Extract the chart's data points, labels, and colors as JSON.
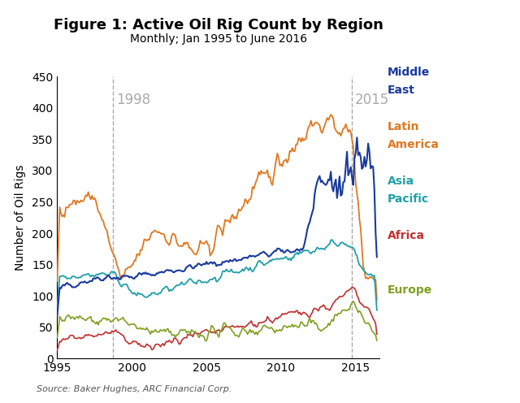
{
  "title": "Figure 1: Active Oil Rig Count by Region",
  "subtitle": "Monthly; Jan 1995 to June 2016",
  "ylabel": "Number of Oil Rigs",
  "source": "Source: Baker Hughes, ARC Financial Corp.",
  "xlim": [
    1995.0,
    2016.6
  ],
  "ylim": [
    0,
    450
  ],
  "yticks": [
    0,
    50,
    100,
    150,
    200,
    250,
    300,
    350,
    400,
    450
  ],
  "xticks": [
    1995,
    2000,
    2005,
    2010,
    2015
  ],
  "vline_1998": 1998.75,
  "vline_2015": 2014.75,
  "vline_label_1998": "1998",
  "vline_label_2015": "2015",
  "colors": {
    "Middle East": "#1a3a9c",
    "Latin America": "#e07820",
    "Asia Pacific": "#20a0a8",
    "Africa": "#c03030",
    "Europe": "#80a020"
  },
  "legend_labels": [
    "Middle East",
    "Latin America",
    "Asia Pacific",
    "Africa",
    "Europe"
  ],
  "background_color": "#ffffff",
  "vline_color": "#aaaaaa",
  "vline_label_color": "#aaaaaa",
  "title_fontsize": 13,
  "subtitle_fontsize": 10,
  "legend_fontsize": 10
}
